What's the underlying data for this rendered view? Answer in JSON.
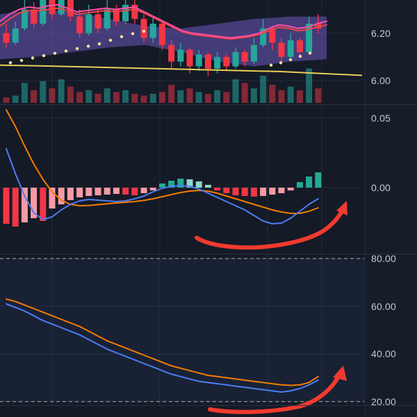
{
  "app": {
    "description": "dark-theme trading chart with price, MACD and stochastic panels and hand-drawn bullish arrows"
  },
  "palette": {
    "bg": "#151a27",
    "axis_bg": "#171c29",
    "grid": "rgba(160,172,194,0.10)",
    "divider": "#2b3040",
    "axis_text": "#c6cad3",
    "up": "#26a69a",
    "down": "#f23645",
    "vol_up": "rgba(38,166,154,0.55)",
    "vol_down": "rgba(242,54,69,0.5)",
    "cloud": "rgba(116,92,204,0.5)",
    "pink": "#f34ea0",
    "red_ma": "#ef4444",
    "yellow": "#e9cf58",
    "sar": "#f3e39a",
    "macd_blue": "#4c7ef3",
    "macd_orange": "#f57c00",
    "hist_neg": "#f23645",
    "hist_neg_light": "#f79ba3",
    "hist_pos": "#22ab94",
    "hist_pos_light": "#8fd5c8",
    "stoch_blue": "#4c7ef3",
    "stoch_orange": "#f57c00",
    "band_fill": "rgba(76,130,230,0.08)",
    "dash": "#aeb3bd",
    "annotation": "#f13a2e"
  },
  "chart_data": [
    {
      "type": "candlestick",
      "name": "price",
      "y_axis_labels": [
        {
          "text": "6.20",
          "value": 6.2
        },
        {
          "text": "6.00",
          "value": 6.0
        }
      ],
      "candles": [
        [
          6.2,
          6.24,
          6.14,
          6.16
        ],
        [
          6.16,
          6.25,
          6.15,
          6.22
        ],
        [
          6.22,
          6.36,
          6.21,
          6.3
        ],
        [
          6.3,
          6.33,
          6.22,
          6.24
        ],
        [
          6.24,
          6.38,
          6.23,
          6.34
        ],
        [
          6.34,
          6.36,
          6.26,
          6.28
        ],
        [
          6.28,
          6.4,
          6.27,
          6.35
        ],
        [
          6.35,
          6.37,
          6.25,
          6.27
        ],
        [
          6.27,
          6.3,
          6.18,
          6.2
        ],
        [
          6.2,
          6.32,
          6.19,
          6.28
        ],
        [
          6.28,
          6.3,
          6.2,
          6.22
        ],
        [
          6.22,
          6.34,
          6.21,
          6.3
        ],
        [
          6.3,
          6.32,
          6.23,
          6.25
        ],
        [
          6.25,
          6.36,
          6.24,
          6.32
        ],
        [
          6.32,
          6.34,
          6.24,
          6.26
        ],
        [
          6.26,
          6.28,
          6.16,
          6.18
        ],
        [
          6.18,
          6.27,
          6.16,
          6.24
        ],
        [
          6.24,
          6.25,
          6.13,
          6.15
        ],
        [
          6.15,
          6.17,
          6.05,
          6.08
        ],
        [
          6.08,
          6.16,
          6.06,
          6.13
        ],
        [
          6.13,
          6.14,
          6.03,
          6.06
        ],
        [
          6.06,
          6.13,
          6.04,
          6.11
        ],
        [
          6.11,
          6.12,
          6.02,
          6.05
        ],
        [
          6.05,
          6.12,
          6.03,
          6.1
        ],
        [
          6.1,
          6.11,
          6.04,
          6.06
        ],
        [
          6.06,
          6.14,
          6.05,
          6.12
        ],
        [
          6.12,
          6.13,
          6.06,
          6.08
        ],
        [
          6.08,
          6.18,
          6.07,
          6.15
        ],
        [
          6.15,
          6.26,
          6.14,
          6.22
        ],
        [
          6.22,
          6.23,
          6.13,
          6.16
        ],
        [
          6.16,
          6.18,
          6.08,
          6.1
        ],
        [
          6.1,
          6.2,
          6.09,
          6.17
        ],
        [
          6.17,
          6.18,
          6.1,
          6.12
        ],
        [
          6.12,
          6.27,
          6.11,
          6.24
        ],
        [
          6.24,
          6.28,
          6.2,
          6.22
        ]
      ],
      "volume": [
        0.15,
        0.2,
        0.55,
        0.35,
        0.6,
        0.4,
        0.65,
        0.45,
        0.3,
        0.35,
        0.25,
        0.4,
        0.3,
        0.35,
        0.25,
        0.2,
        0.25,
        0.3,
        0.5,
        0.35,
        0.4,
        0.3,
        0.25,
        0.35,
        0.3,
        0.65,
        0.55,
        0.4,
        0.75,
        0.5,
        0.35,
        0.45,
        0.35,
        0.95,
        0.4
      ],
      "overlays": {
        "cloud_upper": [
          6.28,
          6.3,
          6.29,
          6.26,
          6.23,
          6.22,
          6.24,
          6.26,
          6.27,
          6.27
        ],
        "cloud_lower": [
          6.09,
          6.1,
          6.12,
          6.14,
          6.15,
          6.12,
          6.08,
          6.06,
          6.08,
          6.09
        ],
        "ma_pink": [
          6.25,
          6.28,
          6.3,
          6.31,
          6.305,
          6.315,
          6.32,
          6.305,
          6.29,
          6.295,
          6.3,
          6.305,
          6.3,
          6.305,
          6.31,
          6.29,
          6.27,
          6.25,
          6.23,
          6.21,
          6.2,
          6.195,
          6.19,
          6.185,
          6.18,
          6.185,
          6.19,
          6.2,
          6.22,
          6.235,
          6.23,
          6.22,
          6.225,
          6.24,
          6.25
        ],
        "ma_red": [
          6.23,
          6.26,
          6.285,
          6.295,
          6.295,
          6.3,
          6.305,
          6.295,
          6.28,
          6.285,
          6.29,
          6.295,
          6.29,
          6.295,
          6.3,
          6.285,
          6.265,
          6.245,
          6.225,
          6.205,
          6.195,
          6.19,
          6.185,
          6.18,
          6.175,
          6.18,
          6.185,
          6.195,
          6.21,
          6.225,
          6.22,
          6.21,
          6.215,
          6.225,
          6.235
        ],
        "ma_yellow": [
          6.065,
          6.062,
          6.058,
          6.054,
          6.05,
          6.046,
          6.042,
          6.038,
          6.03,
          6.022
        ],
        "sar_dots": [
          [
            15,
            6.075
          ],
          [
            31,
            6.085
          ],
          [
            47,
            6.095
          ],
          [
            63,
            6.105
          ],
          [
            79,
            6.115
          ],
          [
            95,
            6.125
          ],
          [
            111,
            6.135
          ],
          [
            127,
            6.145
          ],
          [
            143,
            6.155
          ],
          [
            159,
            6.17
          ],
          [
            175,
            6.185
          ],
          [
            191,
            6.198
          ],
          [
            207,
            6.208
          ],
          [
            390,
            6.065
          ],
          [
            404,
            6.075
          ],
          [
            418,
            6.088
          ],
          [
            432,
            6.102
          ],
          [
            446,
            6.116
          ]
        ]
      }
    },
    {
      "type": "macd",
      "name": "macd",
      "y_axis_labels": [
        {
          "text": "0.05",
          "value": 0.05
        },
        {
          "text": "0.00",
          "value": 0.0
        }
      ],
      "histogram": [
        -0.026,
        -0.028,
        -0.025,
        -0.022,
        -0.024,
        -0.015,
        -0.012,
        -0.009,
        -0.007,
        -0.006,
        -0.0055,
        -0.005,
        -0.0045,
        -0.005,
        -0.0055,
        -0.004,
        -0.002,
        0.003,
        0.005,
        0.0065,
        0.006,
        0.0045,
        0.002,
        -0.002,
        -0.004,
        -0.0055,
        -0.006,
        -0.0065,
        -0.006,
        -0.005,
        -0.004,
        -0.002,
        0.004,
        0.008,
        0.011
      ],
      "macd_line": [
        0.028,
        0.01,
        -0.006,
        -0.018,
        -0.023,
        -0.021,
        -0.016,
        -0.012,
        -0.0095,
        -0.0085,
        -0.009,
        -0.0095,
        -0.01,
        -0.0095,
        -0.008,
        -0.006,
        -0.003,
        -0.0005,
        0.001,
        0.0015,
        0.001,
        -0.001,
        -0.004,
        -0.007,
        -0.01,
        -0.013,
        -0.016,
        -0.02,
        -0.024,
        -0.026,
        -0.0255,
        -0.022,
        -0.017,
        -0.012,
        -0.008
      ],
      "signal_line": [
        0.056,
        0.044,
        0.03,
        0.017,
        0.006,
        -0.003,
        -0.009,
        -0.012,
        -0.013,
        -0.0128,
        -0.0122,
        -0.0116,
        -0.011,
        -0.0105,
        -0.01,
        -0.0092,
        -0.008,
        -0.0065,
        -0.005,
        -0.0035,
        -0.0025,
        -0.002,
        -0.0025,
        -0.004,
        -0.006,
        -0.008,
        -0.01,
        -0.012,
        -0.014,
        -0.016,
        -0.0175,
        -0.0185,
        -0.0185,
        -0.017,
        -0.0145
      ]
    },
    {
      "type": "stochastic",
      "name": "stoch",
      "y_axis_labels": [
        {
          "text": "80.00",
          "value": 80
        },
        {
          "text": "60.00",
          "value": 60
        },
        {
          "text": "40.00",
          "value": 40
        },
        {
          "text": "20.00",
          "value": 20
        }
      ],
      "bands": {
        "upper": 80,
        "lower": 20
      },
      "k_line": [
        61,
        59.5,
        58,
        56,
        54,
        52.5,
        51,
        49.5,
        48,
        46,
        44,
        42,
        40.5,
        39,
        37.5,
        36,
        34.5,
        33,
        31.5,
        30.5,
        29.5,
        28.5,
        28,
        27.5,
        27,
        26.5,
        26,
        25.5,
        25,
        24.5,
        24,
        24.5,
        25.5,
        27,
        29
      ],
      "d_line": [
        63,
        62,
        60.5,
        59,
        57.5,
        56,
        54.5,
        53,
        51.5,
        49.5,
        47.5,
        45.5,
        44,
        42.5,
        41,
        39.5,
        38,
        36.5,
        35,
        34,
        33,
        32,
        31,
        30.5,
        30,
        29.5,
        29,
        28.5,
        28,
        27.5,
        27,
        26.8,
        27,
        28,
        30.5
      ]
    }
  ],
  "annotations": [
    {
      "name": "bullish-arrow-macd",
      "meaning": "hand-drawn arrow pointing up at MACD turn",
      "body": "M283 342 C298 352 330 357 367 356 C408 354 446 345 467 331 C481 321 491 308 496 296",
      "head": "499,289 484,303 500,310"
    },
    {
      "name": "bullish-arrow-stoch",
      "meaning": "hand-drawn arrow pointing up at stochastic turn",
      "body": "M302 589 C335 595 390 594 430 585 C455 579 480 559 489 537",
      "head": "494,526 479,543 499,548"
    }
  ]
}
